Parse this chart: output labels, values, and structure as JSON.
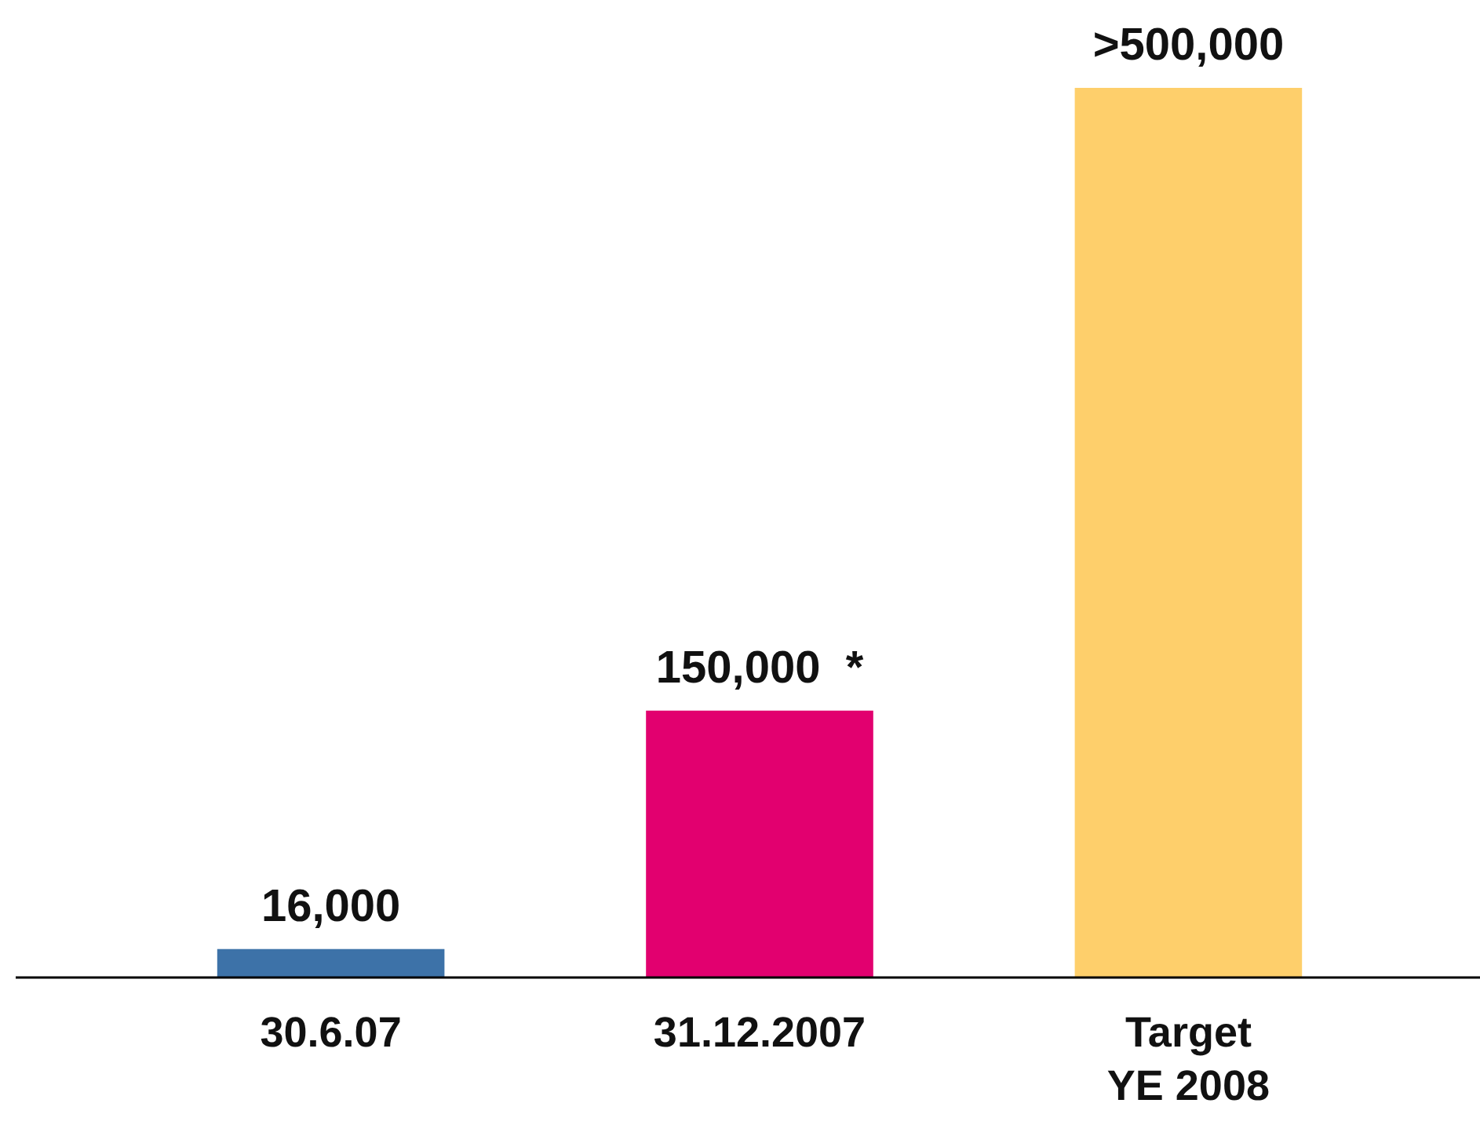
{
  "chart_data": {
    "type": "bar",
    "categories": [
      "30.6.07",
      "31.12.2007",
      "Target\nYE 2008"
    ],
    "values": [
      16000,
      150000,
      500000
    ],
    "colors": [
      "#3d72a8",
      "#e2006f",
      "#fecf6b"
    ],
    "value_labels": [
      "16,000",
      "150,000  *",
      ">500,000"
    ]
  }
}
